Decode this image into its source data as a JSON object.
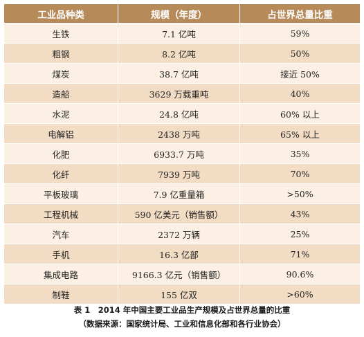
{
  "table": {
    "headers": [
      "工业品种类",
      "规模（年度）",
      "占世界总量比重"
    ],
    "rows": [
      [
        "生铁",
        "7.1 亿吨",
        "59%"
      ],
      [
        "粗钢",
        "8.2 亿吨",
        "50%"
      ],
      [
        "煤炭",
        "38.7 亿吨",
        "接近 50%"
      ],
      [
        "造船",
        "3629 万载重吨",
        "40%"
      ],
      [
        "水泥",
        "24.8 亿吨",
        "60% 以上"
      ],
      [
        "电解铝",
        "2438 万吨",
        "65% 以上"
      ],
      [
        "化肥",
        "6933.7 万吨",
        "35%"
      ],
      [
        "化纤",
        "7939 万吨",
        "70%"
      ],
      [
        "平板玻璃",
        "7.9 亿重量箱",
        ">50%"
      ],
      [
        "工程机械",
        "590 亿美元（销售额）",
        "43%"
      ],
      [
        "汽车",
        "2372 万辆",
        "25%"
      ],
      [
        "手机",
        "16.3 亿部",
        "71%"
      ],
      [
        "集成电路",
        "9166.3 亿元（销售额）",
        "90.6%"
      ],
      [
        "制鞋",
        "155 亿双",
        ">60%"
      ]
    ]
  },
  "caption": {
    "line1": "表 1　2014 年中国主要工业品生产规模及占世界总量的比重",
    "line2": "（数据来源：国家统计局、工业和信息化部和各行业协会）"
  },
  "colors": {
    "header_bg": "#b78a5a",
    "row_light": "#fbf0e3",
    "row_dark": "#f2dcc4"
  }
}
